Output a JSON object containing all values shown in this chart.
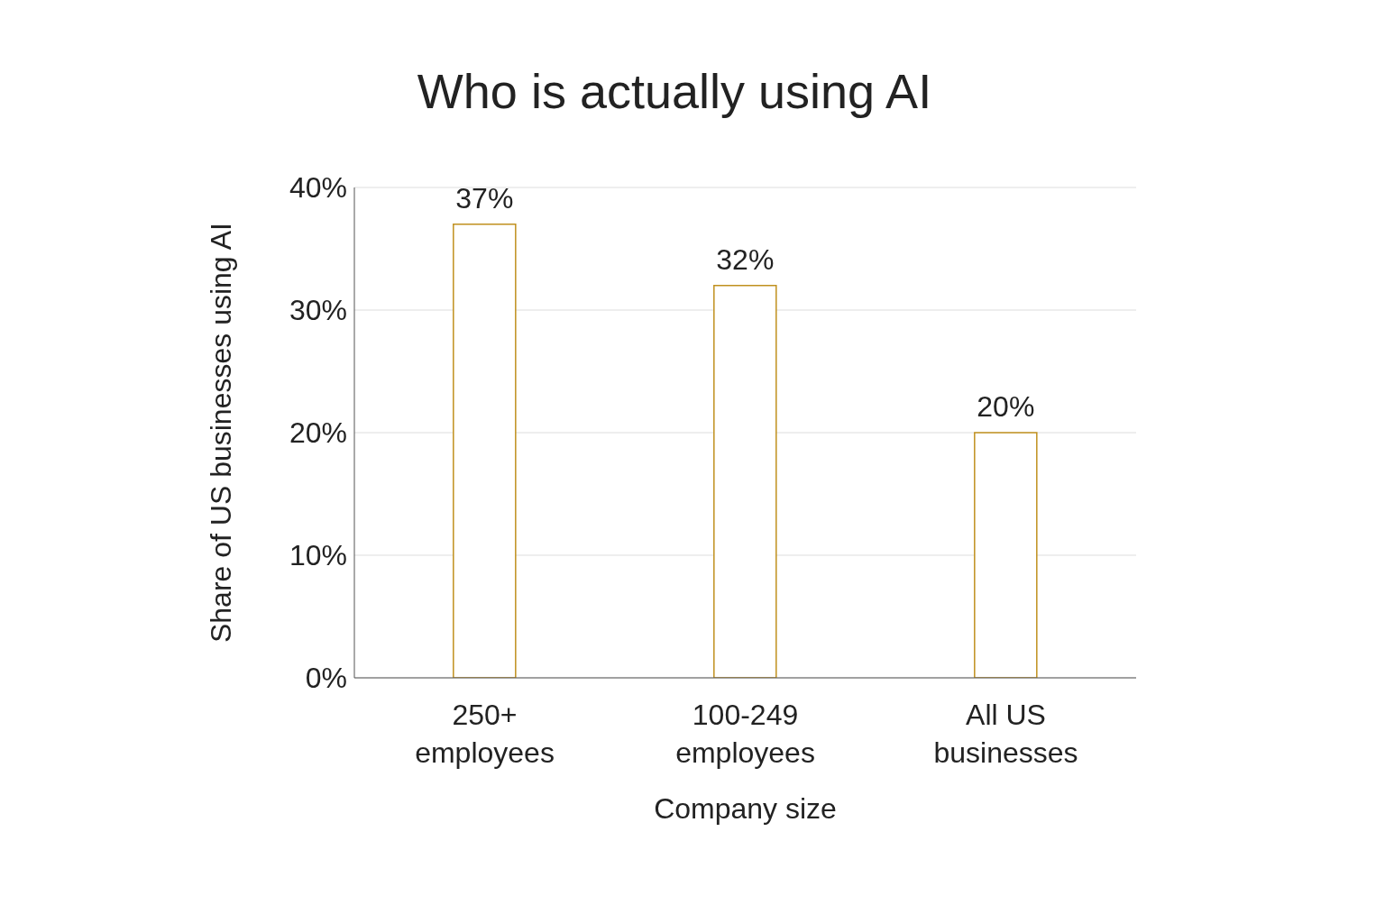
{
  "chart_data": {
    "type": "bar",
    "title": "Who is actually using AI",
    "xlabel": "Company size",
    "ylabel": "Share of US businesses using AI",
    "categories": [
      "250+\nemployees",
      "100-249\nemployees",
      "All US\nbusinesses"
    ],
    "values": [
      37,
      32,
      20
    ],
    "value_labels": [
      "37%",
      "32%",
      "20%"
    ],
    "color": "#c0901e",
    "ylim": [
      0,
      40
    ],
    "yticks": [
      {
        "value": 0,
        "label": "0%"
      },
      {
        "value": 10,
        "label": "10%"
      },
      {
        "value": 20,
        "label": "20%"
      },
      {
        "value": 30,
        "label": "30%"
      },
      {
        "value": 40,
        "label": "40%"
      }
    ],
    "grid": "y"
  }
}
